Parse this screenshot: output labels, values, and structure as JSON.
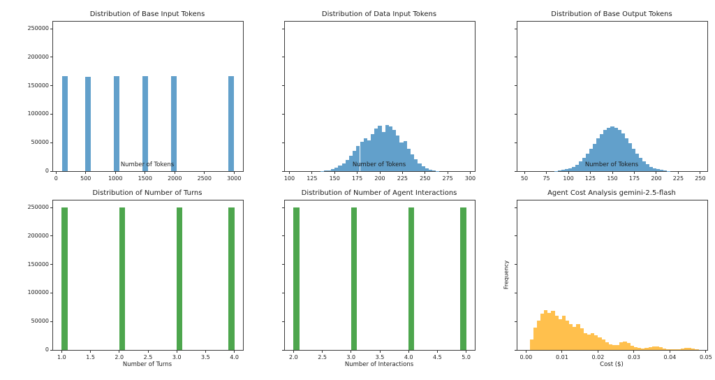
{
  "figure": {
    "background": "#ffffff",
    "spine_color": "#3a3a3a"
  },
  "chart_data": [
    {
      "type": "bar",
      "subtype": "histogram",
      "title": "Distribution of Base Input Tokens",
      "xlabel": "Number of Tokens",
      "ylabel": "",
      "bar_color": "#62a0cb",
      "legend": "none",
      "grid": false,
      "xlim": [
        -50,
        3150
      ],
      "ylim": [
        0,
        262500
      ],
      "bin_width": 96.67,
      "bin_starts": [
        100,
        486.7,
        970,
        1453.3,
        1936.7,
        2903.3
      ],
      "counts": [
        166800,
        166100,
        166900,
        166500,
        166600,
        166800
      ],
      "x_ticks": [
        0,
        500,
        1000,
        1500,
        2000,
        2500,
        3000
      ],
      "x_tick_labels": [
        "0",
        "500",
        "1000",
        "1500",
        "2000",
        "2500",
        "3000"
      ],
      "y_ticks": [
        0,
        50000,
        100000,
        150000,
        200000,
        250000
      ],
      "y_tick_labels": [
        "0",
        "50000",
        "100000",
        "150000",
        "200000",
        "250000"
      ]
    },
    {
      "type": "bar",
      "subtype": "histogram",
      "title": "Distribution of Data Input Tokens",
      "xlabel": "Number of Tokens",
      "ylabel": "",
      "bar_color": "#62a0cb",
      "legend": "none",
      "grid": false,
      "xlim": [
        95,
        305
      ],
      "ylim": [
        0,
        262500
      ],
      "bin_width": 4,
      "bin_start": 134,
      "counts": [
        400,
        900,
        1800,
        3500,
        6000,
        9500,
        14000,
        20000,
        27000,
        35500,
        44000,
        52000,
        58000,
        54000,
        65000,
        75000,
        80000,
        69000,
        81000,
        78000,
        72000,
        62000,
        50000,
        53000,
        39000,
        29500,
        21000,
        14000,
        8500,
        5000,
        2600,
        1200,
        500
      ],
      "x_ticks": [
        100,
        125,
        150,
        175,
        200,
        225,
        250,
        275,
        300
      ],
      "x_tick_labels": [
        "100",
        "125",
        "150",
        "175",
        "200",
        "225",
        "250",
        "275",
        "300"
      ],
      "y_ticks": [
        0,
        50000,
        100000,
        150000,
        200000,
        250000
      ],
      "y_tick_labels": []
    },
    {
      "type": "bar",
      "subtype": "histogram",
      "title": "Distribution of Base Output Tokens",
      "xlabel": "Number of Tokens",
      "ylabel": "",
      "bar_color": "#62a0cb",
      "legend": "none",
      "grid": false,
      "xlim": [
        42,
        258
      ],
      "ylim": [
        0,
        262500
      ],
      "bin_width": 4,
      "bin_start": 84,
      "counts": [
        550,
        1150,
        1900,
        3150,
        5050,
        7850,
        11600,
        16800,
        23100,
        30600,
        39400,
        48400,
        57600,
        65600,
        72400,
        76400,
        78100,
        76500,
        72200,
        65800,
        57400,
        48600,
        39200,
        30800,
        22900,
        16600,
        11800,
        7800,
        5100,
        3100,
        1950,
        1100,
        580
      ],
      "x_ticks": [
        50,
        75,
        100,
        125,
        150,
        175,
        200,
        225,
        250
      ],
      "x_tick_labels": [
        "50",
        "75",
        "100",
        "125",
        "150",
        "175",
        "200",
        "225",
        "250"
      ],
      "y_ticks": [
        0,
        50000,
        100000,
        150000,
        200000,
        250000
      ],
      "y_tick_labels": []
    },
    {
      "type": "bar",
      "subtype": "histogram",
      "title": "Distribution of Number of Turns",
      "xlabel": "Number of Turns",
      "ylabel": "",
      "bar_color": "#4da64d",
      "legend": "none",
      "grid": false,
      "xlim": [
        0.85,
        4.15
      ],
      "ylim": [
        0,
        262500
      ],
      "bin_width": 0.1,
      "bin_starts": [
        1.0,
        2.0,
        3.0,
        3.9
      ],
      "counts": [
        249700,
        250100,
        249900,
        250400
      ],
      "x_ticks": [
        1.0,
        1.5,
        2.0,
        2.5,
        3.0,
        3.5,
        4.0
      ],
      "x_tick_labels": [
        "1.0",
        "1.5",
        "2.0",
        "2.5",
        "3.0",
        "3.5",
        "4.0"
      ],
      "y_ticks": [
        0,
        50000,
        100000,
        150000,
        200000,
        250000
      ],
      "y_tick_labels": [
        "0",
        "50000",
        "100000",
        "150000",
        "200000",
        "250000"
      ]
    },
    {
      "type": "bar",
      "subtype": "histogram",
      "title": "Distribution of Number of Agent Interactions",
      "xlabel": "Number of Interactions",
      "ylabel": "",
      "bar_color": "#4da64d",
      "legend": "none",
      "grid": false,
      "xlim": [
        1.85,
        5.15
      ],
      "ylim": [
        0,
        262500
      ],
      "bin_width": 0.1,
      "bin_starts": [
        2.0,
        3.0,
        4.0,
        4.9
      ],
      "counts": [
        250000,
        249800,
        250100,
        250100
      ],
      "x_ticks": [
        2.0,
        2.5,
        3.0,
        3.5,
        4.0,
        4.5,
        5.0
      ],
      "x_tick_labels": [
        "2.0",
        "2.5",
        "3.0",
        "3.5",
        "4.0",
        "4.5",
        "5.0"
      ],
      "y_ticks": [
        0,
        50000,
        100000,
        150000,
        200000,
        250000
      ],
      "y_tick_labels": []
    },
    {
      "type": "bar",
      "subtype": "histogram",
      "title": "Agent Cost Analysis gemini-2.5-flash",
      "xlabel": "Cost ($)",
      "ylabel": "Frequency",
      "bar_color": "#ffc04d",
      "legend": "none",
      "grid": false,
      "xlim": [
        -0.0024,
        0.0504
      ],
      "ylim": [
        0,
        262500
      ],
      "bin_width": 0.001,
      "bin_start": 0.001,
      "counts": [
        19000,
        39000,
        52000,
        64000,
        70000,
        65000,
        69000,
        60000,
        54000,
        60000,
        51000,
        46000,
        40000,
        45000,
        38000,
        30000,
        27000,
        30000,
        26000,
        22000,
        18000,
        14000,
        10000,
        8000,
        9000,
        13000,
        14500,
        12000,
        7000,
        4500,
        3500,
        3000,
        3500,
        5000,
        6000,
        6500,
        5500,
        3000,
        1200,
        800,
        1000,
        1800,
        2500,
        3200,
        3500,
        2800,
        1500
      ],
      "x_ticks": [
        0.0,
        0.01,
        0.02,
        0.03,
        0.04,
        0.05
      ],
      "x_tick_labels": [
        "0.00",
        "0.01",
        "0.02",
        "0.03",
        "0.04",
        "0.05"
      ],
      "y_ticks": [
        0,
        50000,
        100000,
        150000,
        200000,
        250000
      ],
      "y_tick_labels": []
    }
  ]
}
